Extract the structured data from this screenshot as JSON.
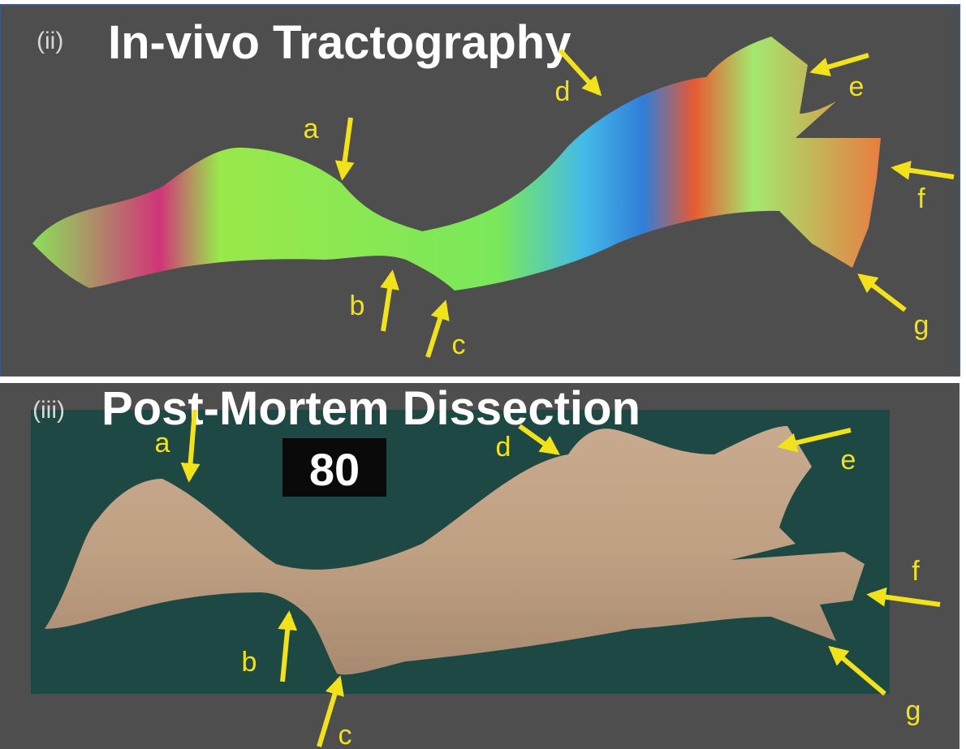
{
  "panels": [
    {
      "label": "(ii)",
      "title": "In-vivo Tractography",
      "annotations": [
        "a",
        "b",
        "c",
        "d",
        "e",
        "f",
        "g"
      ]
    },
    {
      "label": "(iii)",
      "title": "Post-Mortem Dissection",
      "specimen_tag": "80",
      "annotations": [
        "a",
        "b",
        "c",
        "d",
        "e",
        "f",
        "g"
      ]
    }
  ]
}
